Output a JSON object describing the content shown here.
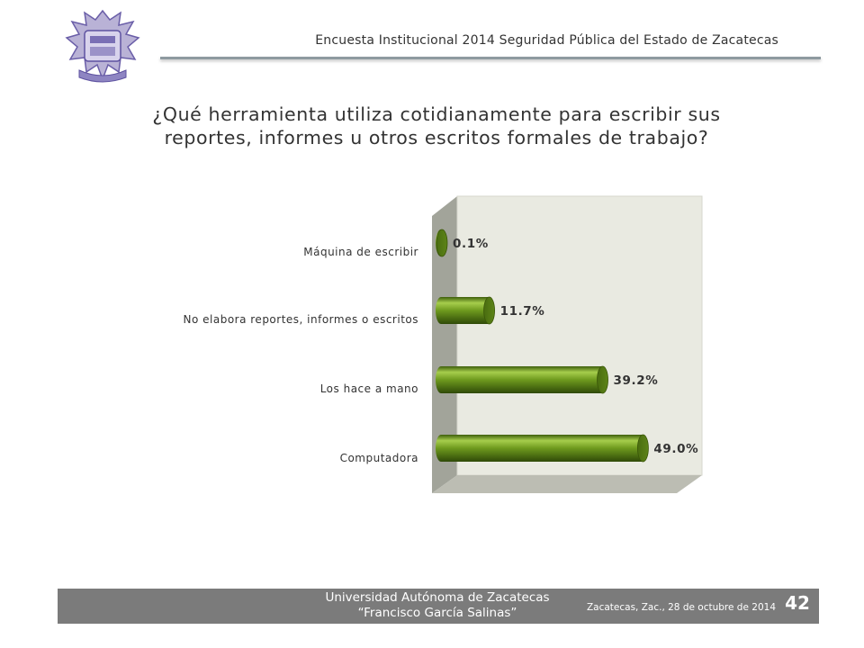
{
  "header": {
    "title": "Encuesta Institucional 2014 Seguridad Pública del Estado de Zacatecas"
  },
  "logo": {
    "icon": "university-crest-icon"
  },
  "question": {
    "line1": "¿Qué herramienta utiliza cotidianamente para escribir sus",
    "line2": "reportes, informes u otros escritos formales de trabajo?"
  },
  "chart_data": {
    "type": "bar",
    "orientation": "horizontal",
    "style": "3d-cylinder",
    "categories": [
      "Máquina de escribir",
      "No elabora reportes, informes o escritos",
      "Los hace a mano",
      "Computadora"
    ],
    "values": [
      0.1,
      11.7,
      39.2,
      49.0
    ],
    "value_labels": [
      "0.1%",
      "11.7%",
      "39.2%",
      "49.0%"
    ],
    "unit": "%",
    "xlim": [
      0,
      50
    ],
    "grid": false,
    "colors": {
      "bar": "#6e9a1e",
      "bar_light": "#a6cd4c",
      "bar_dark": "#3f5f0c",
      "back_wall": "#e9eae1",
      "side_wall": "#a2a49a",
      "floor": "#bcbdb3"
    }
  },
  "footer": {
    "university": "Universidad Autónoma de Zacatecas",
    "university_sub": "“Francisco García Salinas”",
    "date": "Zacatecas, Zac., 28 de octubre de 2014",
    "page_number": "42",
    "bar_color": "#7b7b7b"
  }
}
